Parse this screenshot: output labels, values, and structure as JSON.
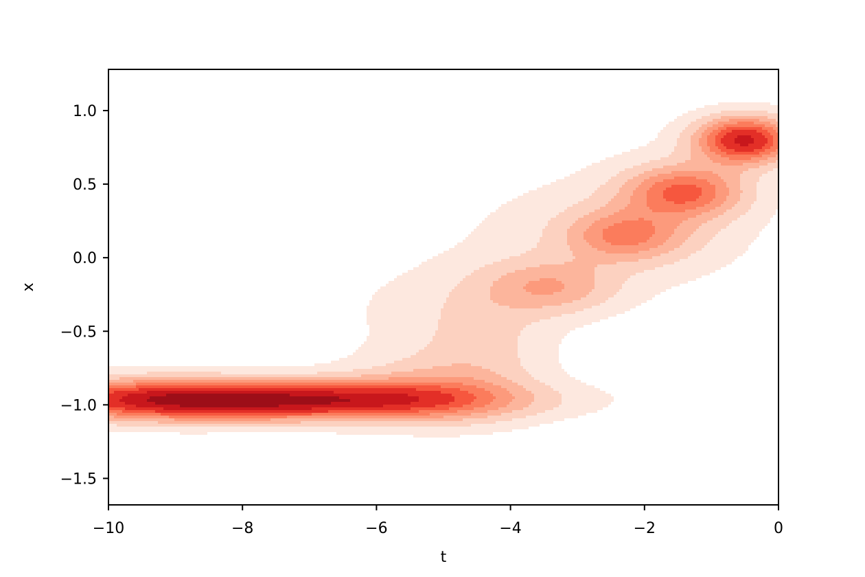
{
  "chart_data": {
    "type": "filled-contour density",
    "xlabel": "t",
    "ylabel": "x",
    "xlim": [
      -10,
      0
    ],
    "ylim": [
      -1.68,
      1.28
    ],
    "xticks": [
      -10,
      -8,
      -6,
      -4,
      -2,
      0
    ],
    "xtick_labels": [
      "−10",
      "−8",
      "−6",
      "−4",
      "−2",
      "0"
    ],
    "yticks": [
      1.0,
      0.5,
      0.0,
      -0.5,
      -1.0,
      -1.5
    ],
    "ytick_labels": [
      "1.0",
      "0.5",
      "0.0",
      "−0.5",
      "−1.0",
      "−1.5"
    ],
    "grid": false,
    "colormap": "Reds",
    "levels": [
      {
        "level": 1,
        "color": "#fde8df"
      },
      {
        "level": 2,
        "color": "#fcd1c0"
      },
      {
        "level": 3,
        "color": "#fcb59c"
      },
      {
        "level": 4,
        "color": "#fc9a7c"
      },
      {
        "level": 5,
        "color": "#fb7c5c"
      },
      {
        "level": 6,
        "color": "#f6573e"
      },
      {
        "level": 7,
        "color": "#e32f27"
      },
      {
        "level": 8,
        "color": "#c8171c"
      },
      {
        "level": 9,
        "color": "#9d0e18"
      }
    ],
    "density_components": [
      {
        "t": -7.3,
        "x": -0.97,
        "sigma_t": 2.0,
        "sigma_x": 0.09,
        "weight": 1.0
      },
      {
        "t": -9.5,
        "x": -0.96,
        "sigma_t": 1.2,
        "sigma_x": 0.1,
        "weight": 0.45
      },
      {
        "t": -5.2,
        "x": -0.9,
        "sigma_t": 0.9,
        "sigma_x": 0.16,
        "weight": 0.25
      },
      {
        "t": -4.4,
        "x": -0.55,
        "sigma_t": 0.7,
        "sigma_x": 0.3,
        "weight": 0.18
      },
      {
        "t": -3.4,
        "x": -0.2,
        "sigma_t": 0.7,
        "sigma_x": 0.13,
        "weight": 0.35
      },
      {
        "t": -2.3,
        "x": 0.15,
        "sigma_t": 0.6,
        "sigma_x": 0.12,
        "weight": 0.42
      },
      {
        "t": -1.4,
        "x": 0.45,
        "sigma_t": 0.6,
        "sigma_x": 0.12,
        "weight": 0.55
      },
      {
        "t": -0.5,
        "x": 0.8,
        "sigma_t": 0.5,
        "sigma_x": 0.11,
        "weight": 0.9
      },
      {
        "t": -5.6,
        "x": -0.35,
        "sigma_t": 0.9,
        "sigma_x": 0.25,
        "weight": 0.06
      },
      {
        "t": -3.0,
        "x": 0.2,
        "sigma_t": 1.2,
        "sigma_x": 0.25,
        "weight": 0.1
      },
      {
        "t": -1.5,
        "x": 0.3,
        "sigma_t": 0.9,
        "sigma_x": 0.3,
        "weight": 0.12
      }
    ]
  }
}
